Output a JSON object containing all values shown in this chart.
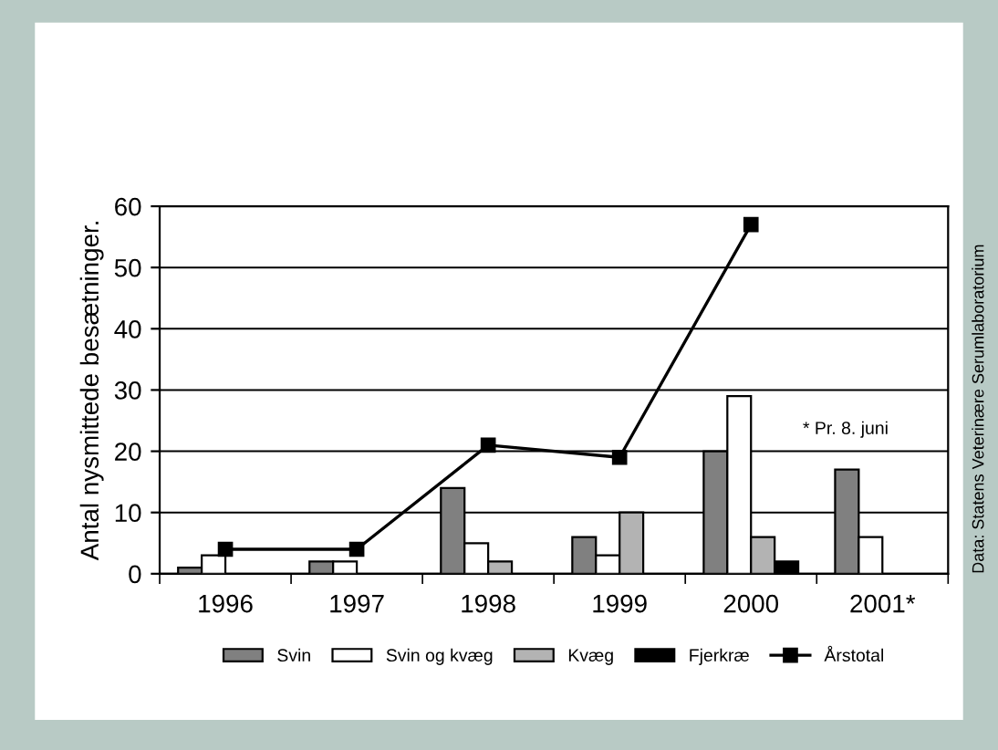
{
  "chart_data": {
    "type": "bar",
    "ylabel": "Antal nysmittede besætninger.",
    "categories": [
      "1996",
      "1997",
      "1998",
      "1999",
      "2000",
      "2001*"
    ],
    "series": [
      {
        "name": "Svin",
        "color": "#808080",
        "values": [
          1,
          2,
          14,
          6,
          20,
          17
        ]
      },
      {
        "name": "Svin og kvæg",
        "color": "#ffffff",
        "values": [
          3,
          2,
          5,
          3,
          29,
          6
        ]
      },
      {
        "name": "Kvæg",
        "color": "#b3b3b3",
        "values": [
          0,
          0,
          2,
          10,
          6,
          0
        ]
      },
      {
        "name": "Fjerkræ",
        "color": "#000000",
        "values": [
          0,
          0,
          0,
          0,
          2,
          0
        ]
      },
      {
        "name": "Årstotal",
        "type": "line",
        "color": "#000000",
        "marker": "square",
        "values": [
          4,
          4,
          21,
          19,
          57,
          null
        ]
      }
    ],
    "ylim": [
      0,
      60
    ],
    "yticks": [
      0,
      10,
      20,
      30,
      40,
      50,
      60
    ],
    "grid": "y",
    "legend": "bottom",
    "annotations": [
      "* Pr. 8. juni",
      "Data: Statens Veterinære Serumlaboratorium"
    ]
  }
}
